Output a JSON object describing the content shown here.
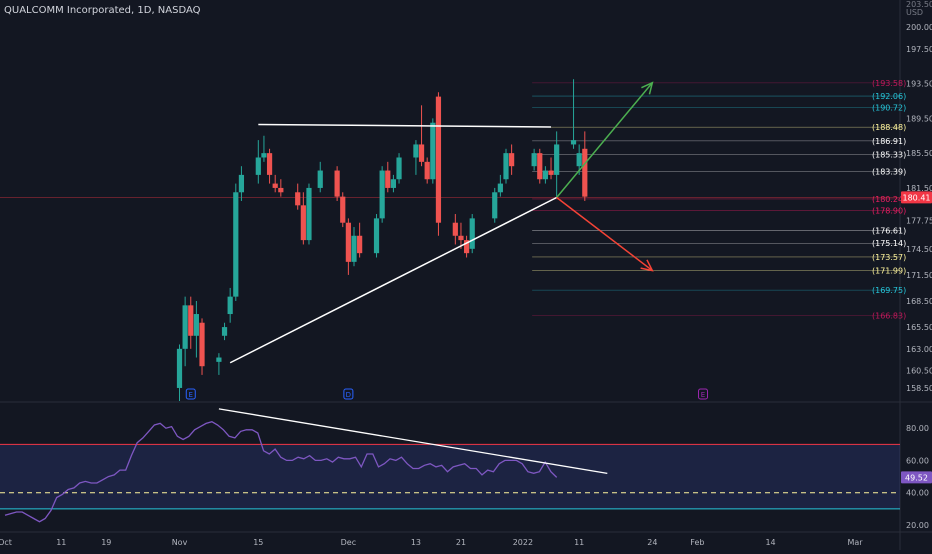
{
  "title": "QUALCOMM Incorporated, 1D, NASDAQ",
  "chart_data": [
    {
      "type": "candlestick",
      "currency": "USD",
      "y_ticks": [
        200.0,
        197.5,
        193.5,
        189.5,
        185.5,
        181.5,
        177.75,
        174.5,
        171.5,
        168.5,
        165.5,
        163.0,
        160.5,
        158.5
      ],
      "y_top_partial": "203.50",
      "ylim": [
        157.0,
        201.5
      ],
      "x_ticks": [
        "Oct",
        "11",
        "19",
        "Nov",
        "15",
        "Dec",
        "13",
        "21",
        "2022",
        "11",
        "24",
        "Feb",
        "14",
        "Mar"
      ],
      "last_price": "180.41",
      "fib_levels": [
        {
          "value": 193.58,
          "label": "(193.58)",
          "color": "#c2185b"
        },
        {
          "value": 192.06,
          "label": "(192.06)",
          "color": "#26c6da"
        },
        {
          "value": 190.72,
          "label": "(190.72)",
          "color": "#26c6da"
        },
        {
          "value": 188.48,
          "label": "(188.48)",
          "color": "#fff59d"
        },
        {
          "value": 186.91,
          "label": "(186.91)",
          "color": "#ffffff"
        },
        {
          "value": 185.33,
          "label": "(185.33)",
          "color": "#ffffff"
        },
        {
          "value": 183.39,
          "label": "(183.39)",
          "color": "#ffffff"
        },
        {
          "value": 180.24,
          "label": "(180.24)",
          "color": "#e91e63"
        },
        {
          "value": 178.9,
          "label": "(178.90)",
          "color": "#e91e63"
        },
        {
          "value": 176.61,
          "label": "(176.61)",
          "color": "#ffffff"
        },
        {
          "value": 175.14,
          "label": "(175.14)",
          "color": "#ffffff"
        },
        {
          "value": 173.57,
          "label": "(173.57)",
          "color": "#fff59d"
        },
        {
          "value": 171.99,
          "label": "(171.99)",
          "color": "#fff59d"
        },
        {
          "value": 169.75,
          "label": "(169.75)",
          "color": "#26c6da"
        },
        {
          "value": 166.83,
          "label": "(166.83)",
          "color": "#c2185b"
        }
      ],
      "events": [
        {
          "symbol": "E",
          "date": "Nov 3",
          "color": "#2962ff"
        },
        {
          "symbol": "D",
          "date": "Dec 1",
          "color": "#2962ff"
        },
        {
          "symbol": "E",
          "date": "Feb 2",
          "color": "#9c27b0"
        }
      ],
      "candles": [
        {
          "o": 158.5,
          "h": 163.5,
          "l": 157,
          "c": 163
        },
        {
          "o": 163,
          "h": 169,
          "l": 161,
          "c": 168
        },
        {
          "o": 168,
          "h": 169,
          "l": 163,
          "c": 164.5
        },
        {
          "o": 164.5,
          "h": 168.5,
          "l": 162,
          "c": 167
        },
        {
          "o": 166,
          "h": 166.5,
          "l": 160,
          "c": 161
        },
        {
          "o": 161.5,
          "h": 162.5,
          "l": 160,
          "c": 162
        },
        {
          "o": 164.5,
          "h": 166,
          "l": 164,
          "c": 165.5
        },
        {
          "o": 167,
          "h": 170,
          "l": 166,
          "c": 169
        },
        {
          "o": 169,
          "h": 182,
          "l": 168.5,
          "c": 181
        },
        {
          "o": 181,
          "h": 184,
          "l": 180,
          "c": 183
        },
        {
          "o": 183,
          "h": 187,
          "l": 182,
          "c": 185
        },
        {
          "o": 185,
          "h": 187.5,
          "l": 184.5,
          "c": 185.5
        },
        {
          "o": 185.5,
          "h": 186,
          "l": 182,
          "c": 183
        },
        {
          "o": 182,
          "h": 183,
          "l": 181,
          "c": 181.5
        },
        {
          "o": 181.5,
          "h": 182.5,
          "l": 180.5,
          "c": 181
        },
        {
          "o": 181,
          "h": 182,
          "l": 179,
          "c": 179.5
        },
        {
          "o": 179.5,
          "h": 181,
          "l": 175,
          "c": 175.5
        },
        {
          "o": 175.5,
          "h": 182,
          "l": 175,
          "c": 181.5
        },
        {
          "o": 181.5,
          "h": 184.5,
          "l": 181,
          "c": 183.5
        },
        {
          "o": 183.5,
          "h": 184,
          "l": 180,
          "c": 180.5
        },
        {
          "o": 180.5,
          "h": 181,
          "l": 177,
          "c": 177.5
        },
        {
          "o": 177.5,
          "h": 178,
          "l": 171.5,
          "c": 173
        },
        {
          "o": 173,
          "h": 177,
          "l": 172.5,
          "c": 176
        },
        {
          "o": 176,
          "h": 177.5,
          "l": 173.5,
          "c": 174
        },
        {
          "o": 174,
          "h": 178.5,
          "l": 173.5,
          "c": 178
        },
        {
          "o": 178,
          "h": 184,
          "l": 177.5,
          "c": 183.5
        },
        {
          "o": 183.5,
          "h": 184.5,
          "l": 181,
          "c": 181.5
        },
        {
          "o": 181.5,
          "h": 183,
          "l": 181,
          "c": 182.5
        },
        {
          "o": 182.5,
          "h": 185.5,
          "l": 182,
          "c": 185
        },
        {
          "o": 185,
          "h": 187,
          "l": 183,
          "c": 186.5
        },
        {
          "o": 186.5,
          "h": 191,
          "l": 184,
          "c": 184.5
        },
        {
          "o": 184.5,
          "h": 185,
          "l": 182,
          "c": 182.5
        },
        {
          "o": 182.5,
          "h": 189.5,
          "l": 182,
          "c": 189
        },
        {
          "o": 192,
          "h": 192.5,
          "l": 176,
          "c": 177.5
        },
        {
          "o": 177.5,
          "h": 178.5,
          "l": 175,
          "c": 176
        },
        {
          "o": 176,
          "h": 177.5,
          "l": 174.5,
          "c": 175.5
        },
        {
          "o": 175.5,
          "h": 176,
          "l": 173.5,
          "c": 174
        },
        {
          "o": 174.5,
          "h": 178.5,
          "l": 174,
          "c": 178
        },
        {
          "o": 178,
          "h": 181.5,
          "l": 177.5,
          "c": 181
        },
        {
          "o": 181,
          "h": 183,
          "l": 180.5,
          "c": 182
        },
        {
          "o": 182.5,
          "h": 186,
          "l": 182,
          "c": 185.5
        },
        {
          "o": 185.5,
          "h": 186.5,
          "l": 183,
          "c": 184
        },
        {
          "o": 184,
          "h": 186,
          "l": 183.5,
          "c": 185.5
        },
        {
          "o": 185.5,
          "h": 186,
          "l": 182,
          "c": 182.5
        },
        {
          "o": 182.5,
          "h": 184,
          "l": 182,
          "c": 183.5
        },
        {
          "o": 183.5,
          "h": 185,
          "l": 182.5,
          "c": 183
        },
        {
          "o": 183,
          "h": 188,
          "l": 180.5,
          "c": 186.5
        },
        {
          "o": 186.5,
          "h": 194,
          "l": 186,
          "c": 187
        },
        {
          "o": 184,
          "h": 186.5,
          "l": 183,
          "c": 185.5
        },
        {
          "o": 186,
          "h": 188,
          "l": 180,
          "c": 180.5
        }
      ],
      "drawings": [
        {
          "name": "resistance-line",
          "from": {
            "x": "Nov 15",
            "y": 188.8
          },
          "to": {
            "x": "Jan 6",
            "y": 188.5
          },
          "color": "#ffffff"
        },
        {
          "name": "rising-support-line",
          "from": {
            "x": "Nov 10",
            "y": 161.4
          },
          "to": {
            "x": "Jan 7",
            "y": 180.4
          },
          "color": "#ffffff"
        },
        {
          "name": "bullish-arrow",
          "from": {
            "x": "Jan 7",
            "y": 180.4
          },
          "to": {
            "x": "Jan 24",
            "y": 193.6
          },
          "color": "#4caf50"
        },
        {
          "name": "bearish-arrow",
          "from": {
            "x": "Jan 7",
            "y": 180.4
          },
          "to": {
            "x": "Jan 24",
            "y": 172.0
          },
          "color": "#f44336"
        }
      ]
    },
    {
      "type": "line",
      "indicator": "RSI",
      "ylim": [
        15,
        95
      ],
      "y_ticks": [
        80.0,
        60.0,
        40.0,
        20.0
      ],
      "last_value": "49.52",
      "overbought": 70,
      "oversold": 30,
      "midline": 40,
      "values": [
        26,
        27,
        28,
        28,
        26,
        24,
        22,
        24,
        29,
        37,
        39,
        42,
        43,
        46,
        47,
        46,
        46,
        48,
        50,
        51,
        54,
        54,
        63,
        71,
        74,
        78,
        82,
        83,
        80,
        81,
        75,
        73,
        75,
        79,
        81,
        83,
        84,
        82,
        79,
        75,
        74,
        78,
        79,
        79,
        77,
        66,
        64,
        67,
        62,
        60,
        60,
        62,
        61,
        63,
        60,
        60,
        61,
        59,
        62,
        61,
        61,
        62,
        56,
        64,
        64,
        56,
        58,
        61,
        60,
        62,
        58,
        55,
        55,
        57,
        58,
        56,
        57,
        53,
        56,
        57,
        58,
        55,
        55,
        51,
        54,
        53,
        58,
        60,
        60,
        60,
        58,
        53,
        52,
        53,
        59,
        53,
        49.5
      ],
      "drawings": [
        {
          "name": "rsi-trendline",
          "from": {
            "x": "Nov 8",
            "y": 92
          },
          "to": {
            "x": "Jan 16",
            "y": 52
          },
          "color": "#ffffff"
        }
      ]
    }
  ]
}
